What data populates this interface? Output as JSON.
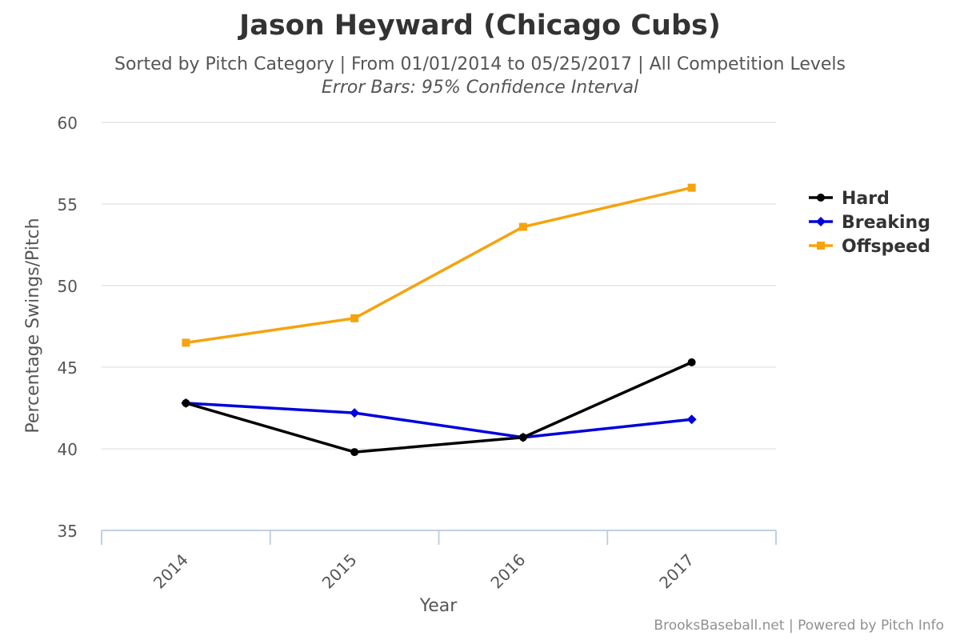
{
  "chart_data": {
    "type": "line",
    "title": "Jason Heyward (Chicago Cubs)",
    "subtitle": "Sorted by Pitch Category | From 01/01/2014 to 05/25/2017 | All Competition Levels",
    "subtitle2": "Error Bars: 95% Confidence Interval",
    "xlabel": "Year",
    "ylabel": "Percentage Swings/Pitch",
    "categories": [
      "2014",
      "2015",
      "2016",
      "2017"
    ],
    "ylim": [
      35,
      60
    ],
    "yticks": [
      35,
      40,
      45,
      50,
      55,
      60
    ],
    "grid": true,
    "legend_position": "right",
    "series": [
      {
        "name": "Hard",
        "color": "#000000",
        "marker": "circle",
        "values": [
          42.8,
          39.8,
          40.7,
          45.3
        ]
      },
      {
        "name": "Breaking",
        "color": "#0000dd",
        "marker": "diamond",
        "values": [
          42.8,
          42.2,
          40.7,
          41.8
        ]
      },
      {
        "name": "Offspeed",
        "color": "#f5a30e",
        "marker": "square",
        "values": [
          46.5,
          48.0,
          53.6,
          56.0
        ]
      }
    ]
  },
  "credits": "BrooksBaseball.net | Powered by Pitch Info"
}
